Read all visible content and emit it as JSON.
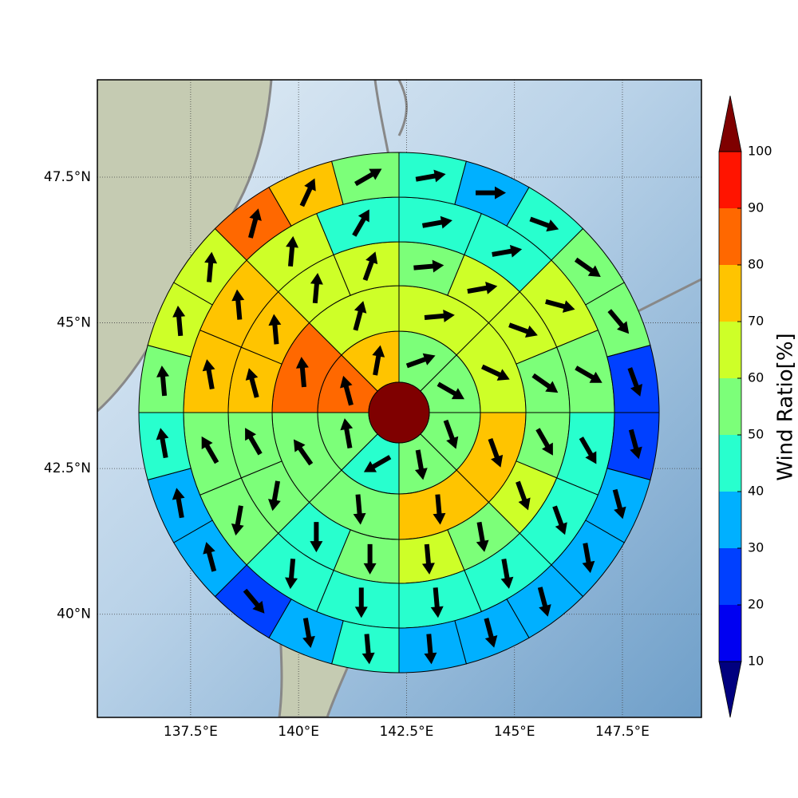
{
  "chart_data": {
    "type": "polar-sector-map",
    "xlim": [
      135.34,
      149.33
    ],
    "ylim": [
      38.23,
      49.17
    ],
    "xticks": [
      {
        "value": 137.5,
        "label": "137.5°E"
      },
      {
        "value": 140,
        "label": "140°E"
      },
      {
        "value": 142.5,
        "label": "142.5°E"
      },
      {
        "value": 145,
        "label": "145°E"
      },
      {
        "value": 147.5,
        "label": "147.5°E"
      }
    ],
    "yticks": [
      {
        "value": 40,
        "label": "40°N"
      },
      {
        "value": 42.5,
        "label": "42.5°N"
      },
      {
        "value": 45,
        "label": "45°N"
      },
      {
        "value": 47.5,
        "label": "47.5°N"
      }
    ],
    "grid": true,
    "colorbar": {
      "label": "Wind Ratio[%]",
      "ticks": [
        10,
        20,
        30,
        40,
        50,
        60,
        70,
        80,
        90,
        100
      ],
      "colors": [
        "#0000f1",
        "#0040ff",
        "#00b0ff",
        "#28ffce",
        "#7cff79",
        "#ceff28",
        "#ffc400",
        "#ff6800",
        "#ff1400"
      ],
      "under_color": "#00007f",
      "over_color": "#7f0000"
    },
    "rings": [
      {
        "values": [
          55,
          55,
          55,
          55,
          45,
          55,
          85,
          75
        ],
        "directions": [
          70,
          120,
          160,
          170,
          240,
          350,
          345,
          10
        ]
      },
      {
        "values": [
          65,
          65,
          75,
          75,
          55,
          55,
          85,
          65
        ],
        "directions": [
          85,
          115,
          160,
          175,
          175,
          325,
          355,
          15
        ]
      },
      {
        "values": [
          55,
          65,
          65,
          55,
          55,
          65,
          55,
          65,
          55,
          45,
          55,
          55,
          75,
          75,
          65,
          65
        ],
        "directions": [
          85,
          80,
          110,
          125,
          150,
          160,
          170,
          175,
          180,
          180,
          190,
          330,
          345,
          355,
          5,
          20
        ]
      },
      {
        "values": [
          45,
          45,
          65,
          55,
          45,
          45,
          45,
          45,
          45,
          45,
          55,
          55,
          75,
          75,
          65,
          45
        ],
        "directions": [
          80,
          80,
          105,
          120,
          150,
          160,
          170,
          175,
          180,
          185,
          190,
          330,
          350,
          355,
          5,
          30
        ]
      },
      {
        "values": [
          45,
          35,
          45,
          55,
          55,
          25,
          25,
          35,
          35,
          35,
          35,
          35,
          45,
          35,
          25,
          35,
          35,
          45,
          55,
          65,
          65,
          85,
          75,
          55
        ],
        "directions": [
          80,
          90,
          110,
          125,
          140,
          160,
          165,
          165,
          170,
          165,
          165,
          175,
          175,
          170,
          140,
          345,
          350,
          350,
          355,
          355,
          5,
          15,
          25,
          60
        ]
      }
    ]
  }
}
